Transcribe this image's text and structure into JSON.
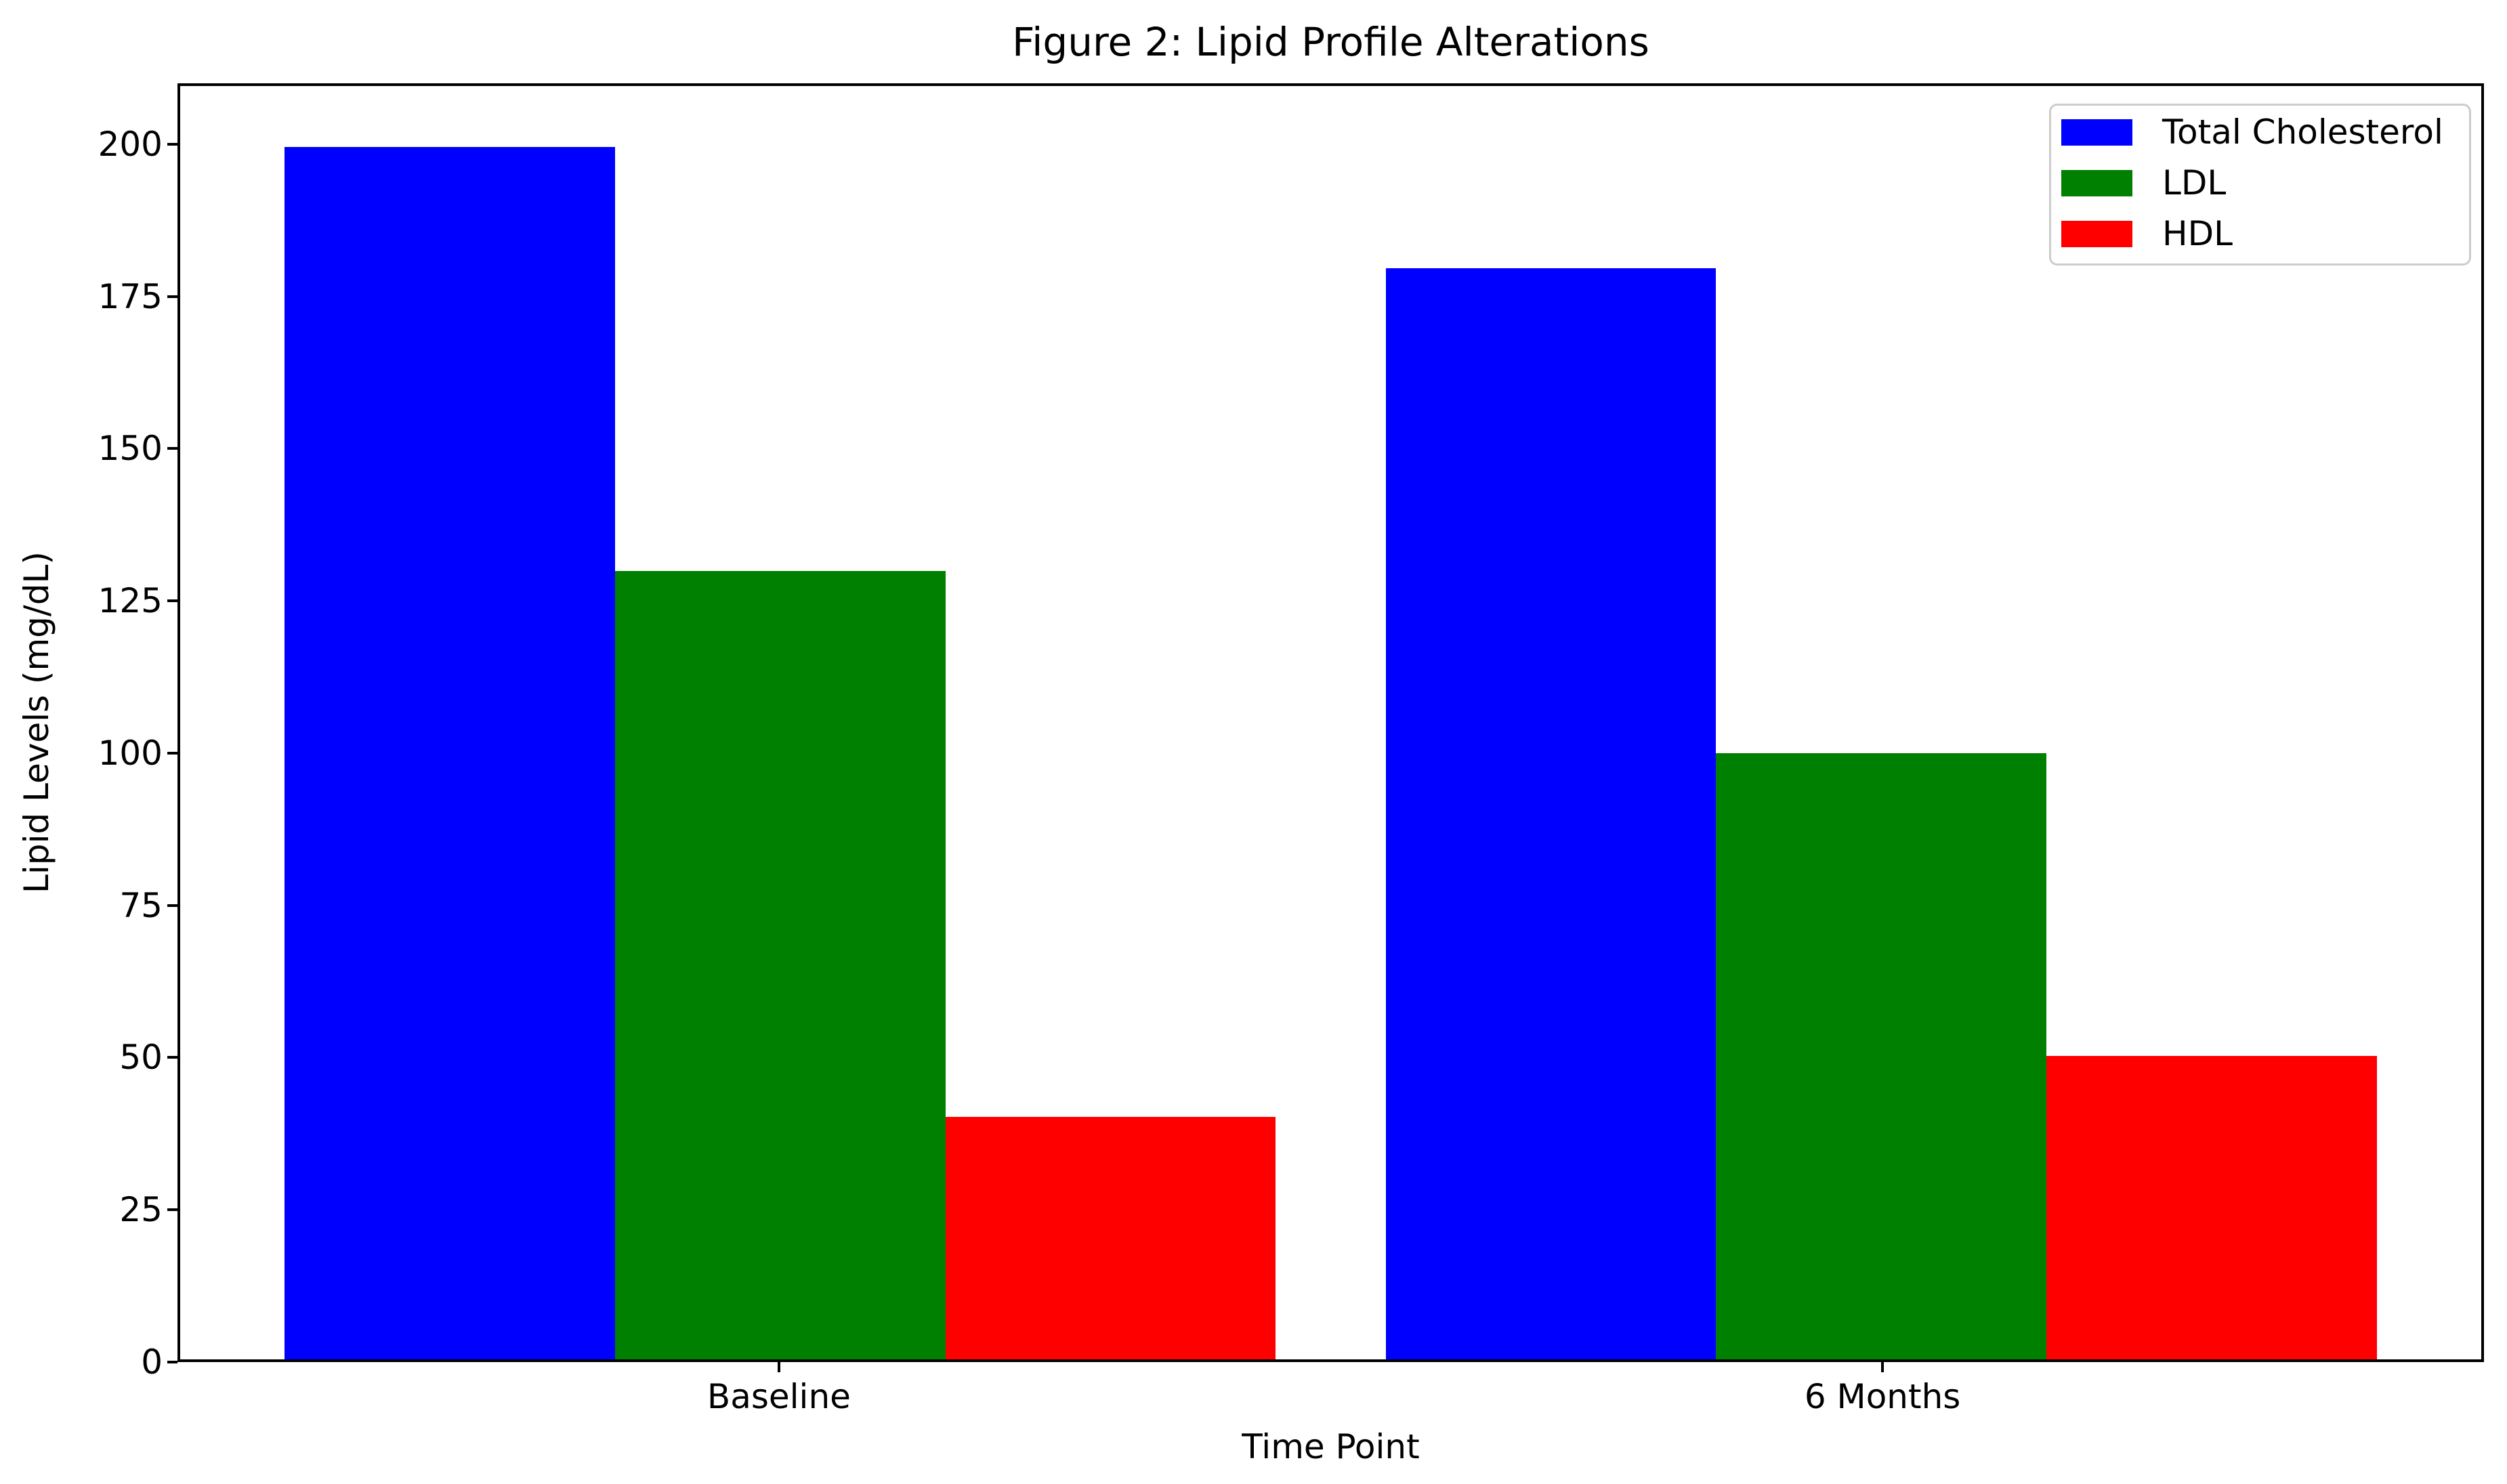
{
  "chart_data": {
    "type": "bar",
    "title": "Figure 2: Lipid Profile Alterations",
    "xlabel": "Time Point",
    "ylabel": "Lipid Levels (mg/dL)",
    "categories": [
      "Baseline",
      "6 Months"
    ],
    "series": [
      {
        "name": "Total Cholesterol",
        "color": "#0000ff",
        "values": [
          200,
          180
        ]
      },
      {
        "name": "LDL",
        "color": "#008000",
        "values": [
          130,
          100
        ]
      },
      {
        "name": "HDL",
        "color": "#ff0000",
        "values": [
          40,
          50
        ]
      }
    ],
    "x_positions": [
      0,
      1
    ],
    "bar_width": 0.3,
    "xlim": [
      -0.545,
      1.545
    ],
    "ylim": [
      0,
      210
    ],
    "yticks": [
      0,
      25,
      50,
      75,
      100,
      125,
      150,
      175,
      200
    ],
    "grid": false,
    "legend_position": "upper right",
    "axis_color": "#000000",
    "text_color": "#000000",
    "background": "#ffffff"
  }
}
